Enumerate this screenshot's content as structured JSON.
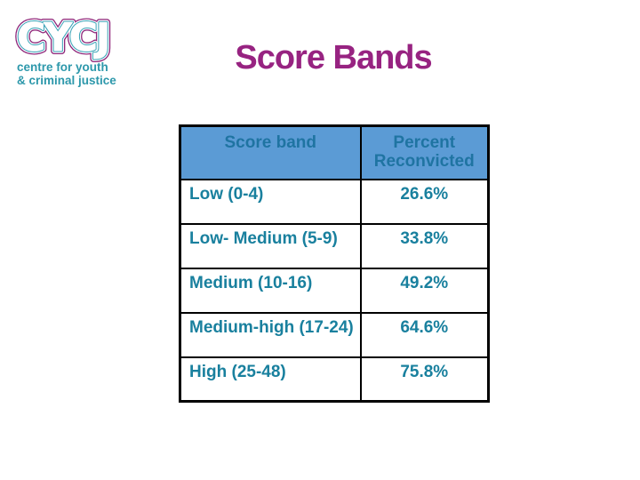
{
  "logo": {
    "acronym": "CYCJ",
    "tagline_line1": "centre for youth",
    "tagline_line2": "& criminal justice"
  },
  "title": "Score Bands",
  "table": {
    "header_band": "Score band",
    "header_percent": "Percent Reconvicted",
    "rows": [
      {
        "band": "Low (0-4)",
        "percent": "26.6%"
      },
      {
        "band": "Low- Medium (5-9)",
        "percent": "33.8%"
      },
      {
        "band": "Medium (10-16)",
        "percent": "49.2%"
      },
      {
        "band": "Medium-high (17-24)",
        "percent": "64.6%"
      },
      {
        "band": "High (25-48)",
        "percent": "75.8%"
      }
    ]
  },
  "chart_data": {
    "type": "table",
    "columns": [
      "Score band",
      "Percent Reconvicted"
    ],
    "rows": [
      [
        "Low (0-4)",
        "26.6%"
      ],
      [
        "Low- Medium (5-9)",
        "33.8%"
      ],
      [
        "Medium (10-16)",
        "49.2%"
      ],
      [
        "Medium-high (17-24)",
        "64.6%"
      ],
      [
        "High (25-48)",
        "75.8%"
      ]
    ]
  },
  "colors": {
    "title": "#972381",
    "header_background": "#5b9bd5",
    "header_text": "#1f74a2",
    "body_text": "#19809e",
    "border": "#000000",
    "logo_purple": "#8d2478",
    "logo_teal": "#35a0b5",
    "logo_tagline_teal": "#2d98ab"
  }
}
